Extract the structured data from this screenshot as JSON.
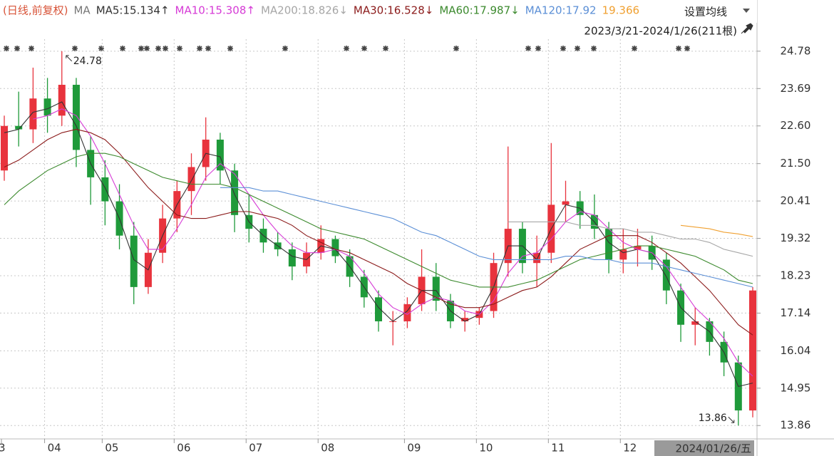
{
  "chart_data": {
    "type": "candlestick",
    "title": "(日线,前复权)",
    "ma_label": "MA",
    "menu": "设置均线",
    "range": "2023/3/21-2024/1/26(211根)",
    "categories": [
      "3",
      null,
      null,
      "04",
      null,
      null,
      null,
      "05",
      null,
      null,
      null,
      null,
      "06",
      null,
      null,
      null,
      null,
      "07",
      null,
      null,
      null,
      null,
      "08",
      null,
      null,
      null,
      null,
      null,
      "09",
      null,
      null,
      null,
      null,
      "10",
      null,
      null,
      null,
      null,
      "11",
      null,
      null,
      null,
      null,
      "12",
      null,
      null,
      null,
      null,
      null,
      null,
      null,
      null,
      "2024/01/26/五"
    ],
    "open": [
      21.3,
      22.6,
      22.5,
      23.4,
      22.9,
      23.8,
      21.9,
      21.1,
      20.4,
      19.4,
      17.9,
      18.9,
      19.9,
      20.7,
      21.4,
      22.2,
      21.3,
      20.0,
      19.6,
      19.2,
      19.0,
      18.5,
      18.9,
      19.3,
      18.8,
      18.2,
      17.6,
      16.9,
      16.9,
      17.4,
      18.2,
      17.5,
      16.9,
      17.0,
      17.2,
      18.6,
      19.6,
      18.6,
      18.9,
      20.3,
      20.4,
      20.0,
      19.6,
      18.7,
      19.0,
      19.1,
      18.7,
      17.8,
      16.8,
      16.9,
      16.3,
      15.7,
      14.3
    ],
    "high": [
      22.9,
      23.6,
      24.3,
      24.0,
      24.78,
      24.0,
      22.3,
      21.6,
      20.9,
      19.8,
      19.3,
      20.3,
      21.0,
      21.8,
      22.85,
      22.4,
      21.5,
      20.6,
      19.9,
      19.5,
      19.2,
      19.2,
      19.7,
      19.4,
      19.0,
      18.4,
      17.8,
      17.2,
      17.6,
      19.0,
      18.6,
      17.7,
      17.2,
      17.3,
      18.9,
      22.0,
      19.8,
      19.4,
      22.1,
      21.0,
      20.7,
      20.6,
      19.8,
      19.6,
      19.6,
      19.4,
      18.9,
      18.0,
      17.3,
      17.0,
      16.6,
      15.9,
      17.9
    ],
    "low": [
      21.0,
      22.0,
      22.1,
      22.4,
      22.6,
      21.4,
      20.3,
      19.7,
      19.0,
      17.4,
      17.7,
      18.6,
      19.5,
      20.0,
      21.0,
      20.9,
      19.5,
      19.2,
      18.9,
      18.8,
      18.1,
      18.3,
      18.7,
      18.6,
      17.9,
      17.3,
      16.6,
      16.2,
      16.7,
      17.2,
      17.2,
      16.7,
      16.6,
      16.8,
      17.0,
      18.2,
      18.3,
      17.9,
      18.6,
      19.8,
      19.6,
      19.3,
      18.3,
      18.3,
      18.5,
      18.4,
      17.4,
      16.3,
      16.2,
      15.9,
      15.3,
      13.86,
      14.1
    ],
    "close": [
      22.6,
      22.5,
      23.4,
      22.9,
      23.8,
      21.9,
      21.1,
      20.4,
      19.4,
      17.9,
      18.9,
      19.9,
      20.7,
      21.4,
      22.2,
      21.3,
      20.0,
      19.6,
      19.2,
      19.0,
      18.5,
      18.9,
      19.3,
      18.8,
      18.2,
      17.6,
      16.9,
      16.9,
      17.4,
      18.2,
      17.5,
      16.9,
      17.0,
      17.2,
      18.6,
      19.6,
      18.6,
      18.9,
      20.3,
      20.4,
      20.0,
      19.6,
      18.7,
      19.0,
      19.1,
      18.7,
      17.8,
      16.8,
      16.9,
      16.3,
      15.7,
      14.3,
      17.8
    ],
    "up_color": "#e8333d",
    "down_color": "#1f9a3a",
    "series": [
      {
        "name": "MA5:15.134↑",
        "color": "#333333",
        "values": [
          22.4,
          22.5,
          23.0,
          23.1,
          23.3,
          22.6,
          21.5,
          20.8,
          19.9,
          18.7,
          18.4,
          19.4,
          20.3,
          21.0,
          21.8,
          21.7,
          20.6,
          19.8,
          19.4,
          19.1,
          18.8,
          18.7,
          19.1,
          19.0,
          18.5,
          17.9,
          17.3,
          16.9,
          17.2,
          17.8,
          17.8,
          17.2,
          16.9,
          17.1,
          17.9,
          19.1,
          19.1,
          18.7,
          19.6,
          20.3,
          20.2,
          19.8,
          19.2,
          18.9,
          19.0,
          18.9,
          18.2,
          17.3,
          16.9,
          16.6,
          16.0,
          15.0,
          15.1
        ]
      },
      {
        "name": "MA10:15.308↑",
        "color": "#d63bd6",
        "values": [
          null,
          null,
          22.8,
          22.9,
          23.1,
          22.9,
          22.3,
          21.5,
          20.6,
          19.7,
          19.0,
          19.0,
          19.6,
          20.3,
          21.1,
          21.5,
          21.2,
          20.6,
          20.0,
          19.5,
          19.1,
          18.9,
          18.9,
          19.0,
          18.8,
          18.3,
          17.7,
          17.3,
          17.1,
          17.4,
          17.6,
          17.5,
          17.2,
          17.1,
          17.5,
          18.3,
          18.8,
          18.9,
          19.3,
          19.8,
          20.1,
          20.0,
          19.6,
          19.2,
          19.0,
          18.9,
          18.5,
          17.9,
          17.3,
          16.9,
          16.4,
          15.7,
          15.3
        ]
      },
      {
        "name": "MA200:18.826↓",
        "color": "#a6a6a6",
        "values": [
          null,
          null,
          null,
          null,
          null,
          null,
          null,
          null,
          null,
          null,
          null,
          null,
          null,
          null,
          null,
          null,
          null,
          null,
          null,
          null,
          null,
          null,
          null,
          null,
          null,
          null,
          null,
          null,
          null,
          null,
          null,
          null,
          null,
          null,
          null,
          19.8,
          19.8,
          19.8,
          19.8,
          19.8,
          19.7,
          19.7,
          19.6,
          19.6,
          19.5,
          19.5,
          19.4,
          19.3,
          19.3,
          19.2,
          19.0,
          18.9,
          18.8
        ]
      },
      {
        "name": "MA30:16.528↓",
        "color": "#8b1a1a",
        "values": [
          21.4,
          21.6,
          21.9,
          22.2,
          22.4,
          22.5,
          22.4,
          22.2,
          21.8,
          21.3,
          20.8,
          20.4,
          20.0,
          19.9,
          19.9,
          20.0,
          20.1,
          20.1,
          20.0,
          19.9,
          19.7,
          19.4,
          19.2,
          19.0,
          18.9,
          18.7,
          18.5,
          18.3,
          18.0,
          17.8,
          17.6,
          17.4,
          17.3,
          17.3,
          17.4,
          17.6,
          17.8,
          17.9,
          18.2,
          18.6,
          19.0,
          19.2,
          19.4,
          19.4,
          19.4,
          19.2,
          18.9,
          18.6,
          18.2,
          17.8,
          17.3,
          16.8,
          16.5
        ]
      },
      {
        "name": "MA60:17.987↓",
        "color": "#3c8a2e",
        "values": [
          20.3,
          20.7,
          21.0,
          21.3,
          21.5,
          21.7,
          21.8,
          21.8,
          21.7,
          21.5,
          21.3,
          21.1,
          21.0,
          20.9,
          20.9,
          20.9,
          20.8,
          20.6,
          20.4,
          20.2,
          20.0,
          19.8,
          19.6,
          19.5,
          19.4,
          19.3,
          19.1,
          18.9,
          18.7,
          18.5,
          18.3,
          18.1,
          18.0,
          17.9,
          17.9,
          17.9,
          18.0,
          18.1,
          18.3,
          18.5,
          18.7,
          18.8,
          18.9,
          19.0,
          19.1,
          19.1,
          19.0,
          18.9,
          18.8,
          18.6,
          18.4,
          18.1,
          18.0
        ]
      },
      {
        "name": "MA120:17.92",
        "color": "#5b8fd6",
        "values": [
          null,
          null,
          null,
          null,
          null,
          null,
          null,
          null,
          null,
          null,
          null,
          null,
          null,
          null,
          null,
          20.8,
          20.8,
          20.8,
          20.7,
          20.7,
          20.6,
          20.5,
          20.4,
          20.3,
          20.2,
          20.1,
          20.0,
          19.9,
          19.7,
          19.5,
          19.4,
          19.2,
          19.0,
          18.8,
          18.7,
          18.7,
          18.7,
          18.7,
          18.7,
          18.8,
          18.8,
          18.7,
          18.7,
          18.6,
          18.6,
          18.6,
          18.5,
          18.4,
          18.3,
          18.2,
          18.1,
          18.0,
          17.9
        ]
      },
      {
        "name": "19.366",
        "color": "#f0a030",
        "values": [
          null,
          null,
          null,
          null,
          null,
          null,
          null,
          null,
          null,
          null,
          null,
          null,
          null,
          null,
          null,
          null,
          null,
          null,
          null,
          null,
          null,
          null,
          null,
          null,
          null,
          null,
          null,
          null,
          null,
          null,
          null,
          null,
          null,
          null,
          null,
          null,
          null,
          null,
          null,
          null,
          null,
          null,
          null,
          null,
          null,
          null,
          null,
          19.7,
          19.65,
          19.6,
          19.5,
          19.45,
          19.37
        ]
      }
    ],
    "ylim": [
      13.47,
      25.13
    ],
    "yticks": [
      24.78,
      23.69,
      {
        "value": 22.6,
        "label": "22.60"
      },
      {
        "value": 21.5,
        "label": "21.50"
      },
      20.41,
      19.32,
      18.23,
      17.14,
      16.04,
      14.95,
      13.86
    ],
    "grid": true
  }
}
